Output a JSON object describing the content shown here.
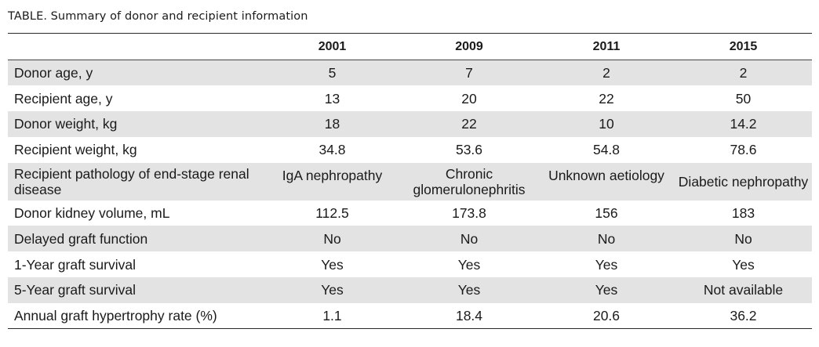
{
  "caption": {
    "label": "TABLE.",
    "text": "Summary of donor and recipient information"
  },
  "table": {
    "columns": [
      "",
      "2001",
      "2009",
      "2011",
      "2015"
    ],
    "rows": [
      {
        "label": "Donor age, y",
        "values": [
          "5",
          "7",
          "2",
          "2"
        ]
      },
      {
        "label": "Recipient age, y",
        "values": [
          "13",
          "20",
          "22",
          "50"
        ]
      },
      {
        "label": "Donor weight, kg",
        "values": [
          "18",
          "22",
          "10",
          "14.2"
        ]
      },
      {
        "label": "Recipient weight, kg",
        "values": [
          "34.8",
          "53.6",
          "54.8",
          "78.6"
        ]
      },
      {
        "label": "Recipient pathology of end-stage renal disease",
        "values": [
          "IgA nephropathy",
          "Chronic glomerulonephritis",
          "Unknown aetiology",
          "Diabetic nephropathy"
        ]
      },
      {
        "label": "Donor kidney volume, mL",
        "values": [
          "112.5",
          "173.8",
          "156",
          "183"
        ]
      },
      {
        "label": "Delayed graft function",
        "values": [
          "No",
          "No",
          "No",
          "No"
        ]
      },
      {
        "label": "1-Year graft survival",
        "values": [
          "Yes",
          "Yes",
          "Yes",
          "Yes"
        ]
      },
      {
        "label": "5-Year graft survival",
        "values": [
          "Yes",
          "Yes",
          "Yes",
          "Not available"
        ]
      },
      {
        "label": "Annual graft hypertrophy rate (%)",
        "values": [
          "1.1",
          "18.4",
          "20.6",
          "36.2"
        ]
      }
    ]
  }
}
